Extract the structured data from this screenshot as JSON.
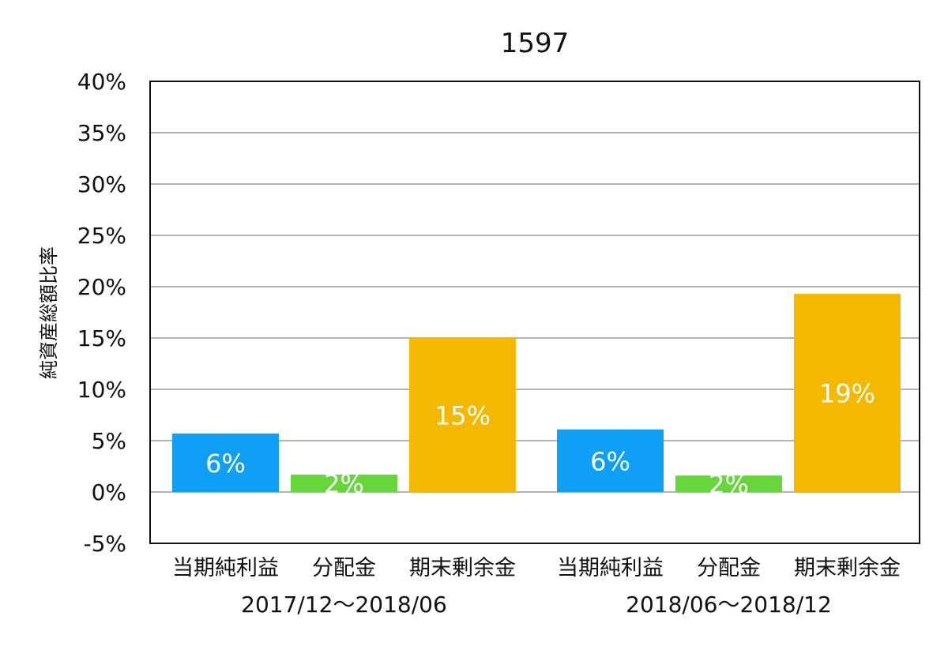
{
  "chart_data": {
    "type": "bar",
    "title": "1597",
    "ylabel": "純資産総額比率",
    "xlabel": "",
    "ylim": [
      -5,
      40
    ],
    "yticks": [
      -5,
      0,
      5,
      10,
      15,
      20,
      25,
      30,
      35,
      40
    ],
    "ytick_labels": [
      "-5%",
      "0%",
      "5%",
      "10%",
      "15%",
      "20%",
      "25%",
      "30%",
      "35%",
      "40%"
    ],
    "grid": true,
    "groups": [
      {
        "label": "2017/12～2018/06",
        "bars": [
          {
            "category": "当期純利益",
            "value": 5.7,
            "label": "6%",
            "color": "#0fa0f5"
          },
          {
            "category": "分配金",
            "value": 1.7,
            "label": "2%",
            "color": "#66d63a"
          },
          {
            "category": "期末剰余金",
            "value": 15.0,
            "label": "15%",
            "color": "#f5b800"
          }
        ]
      },
      {
        "label": "2018/06～2018/12",
        "bars": [
          {
            "category": "当期純利益",
            "value": 6.1,
            "label": "6%",
            "color": "#0fa0f5"
          },
          {
            "category": "分配金",
            "value": 1.6,
            "label": "2%",
            "color": "#66d63a"
          },
          {
            "category": "期末剰余金",
            "value": 19.3,
            "label": "19%",
            "color": "#f5b800"
          }
        ]
      }
    ]
  }
}
